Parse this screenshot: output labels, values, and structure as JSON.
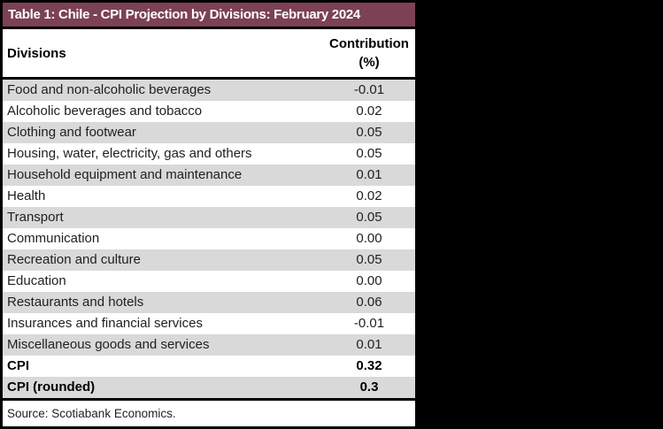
{
  "table": {
    "title": "Table 1: Chile - CPI Projection by Divisions: February 2024",
    "header": {
      "divisions_label": "Divisions",
      "contribution_label_line1": "Contribution",
      "contribution_label_line2": "(%)"
    },
    "source": "Source: Scotiabank Economics."
  },
  "colors": {
    "canvas_bg": "#000000",
    "title_bg": "#7C4154",
    "title_fg": "#FFFFFF",
    "border": "#000000",
    "row_bg": "#FFFFFF",
    "stripe_bg": "#D9D9D9",
    "text": "#1F1F1F"
  },
  "chart_data": {
    "type": "table",
    "title": "Table 1: Chile - CPI Projection by Divisions: February 2024",
    "columns": [
      "Divisions",
      "Contribution (%)"
    ],
    "rows": [
      {
        "division": "Food and non-alcoholic beverages",
        "contribution": "-0.01",
        "bold": false
      },
      {
        "division": "Alcoholic beverages and tobacco",
        "contribution": "0.02",
        "bold": false
      },
      {
        "division": "Clothing and footwear",
        "contribution": "0.05",
        "bold": false
      },
      {
        "division": "Housing, water, electricity, gas and others",
        "contribution": "0.05",
        "bold": false
      },
      {
        "division": "Household equipment and maintenance",
        "contribution": "0.01",
        "bold": false
      },
      {
        "division": "Health",
        "contribution": "0.02",
        "bold": false
      },
      {
        "division": "Transport",
        "contribution": "0.05",
        "bold": false
      },
      {
        "division": "Communication",
        "contribution": "0.00",
        "bold": false
      },
      {
        "division": "Recreation and culture",
        "contribution": "0.05",
        "bold": false
      },
      {
        "division": "Education",
        "contribution": "0.00",
        "bold": false
      },
      {
        "division": "Restaurants and hotels",
        "contribution": "0.06",
        "bold": false
      },
      {
        "division": "Insurances and financial services",
        "contribution": "-0.01",
        "bold": false
      },
      {
        "division": "Miscellaneous goods and services",
        "contribution": "0.01",
        "bold": false
      },
      {
        "division": "CPI",
        "contribution": "0.32",
        "bold": true
      },
      {
        "division": "CPI (rounded)",
        "contribution": "0.3",
        "bold": true
      }
    ],
    "source": "Source: Scotiabank Economics.",
    "layout": {
      "striped": true,
      "stripe_color": "#D9D9D9",
      "value_align": "center",
      "legend": "none",
      "grid": "off"
    }
  }
}
